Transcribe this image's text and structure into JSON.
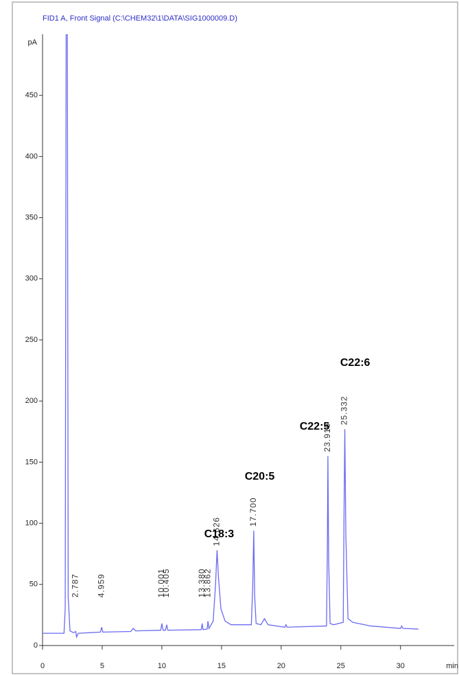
{
  "chart_data": {
    "type": "line",
    "title": "FID1 A, Front Signal (C:\\CHEM32\\1\\DATA\\SIG1000009.D)",
    "xlabel": "min",
    "ylabel": "pA",
    "color": "#6a6af0",
    "x": [
      0,
      1.8,
      1.9,
      1.98,
      2.08,
      2.15,
      2.3,
      2.6,
      2.787,
      2.85,
      3.0,
      4.85,
      4.959,
      5.05,
      7.4,
      7.6,
      7.8,
      9.9,
      10.001,
      10.1,
      10.3,
      10.405,
      10.5,
      13.3,
      13.38,
      13.45,
      13.8,
      13.862,
      13.95,
      14.3,
      14.5,
      14.626,
      14.75,
      14.95,
      15.3,
      15.8,
      17.5,
      17.62,
      17.7,
      17.78,
      17.9,
      18.3,
      18.6,
      18.9,
      20.3,
      20.4,
      20.5,
      23.8,
      23.87,
      23.916,
      23.98,
      24.1,
      24.4,
      25.2,
      25.27,
      25.332,
      25.42,
      25.6,
      26,
      27.5,
      30,
      30.1,
      30.2,
      31.5
    ],
    "values": [
      10,
      10,
      30,
      500,
      500,
      40,
      12,
      10.5,
      11.5,
      7,
      10,
      11,
      15,
      11,
      11.5,
      14,
      12,
      12.5,
      18,
      12.5,
      12.5,
      17,
      12.5,
      13,
      18,
      13,
      13.5,
      20,
      14,
      20,
      50,
      78,
      55,
      30,
      20,
      17,
      17,
      50,
      94,
      40,
      18,
      17,
      22,
      17,
      15,
      17,
      15,
      16,
      80,
      155,
      70,
      18,
      17,
      19,
      110,
      177,
      90,
      22,
      19,
      16,
      14,
      16,
      14,
      13.5
    ],
    "peaks": [
      {
        "value": 2.787,
        "label": "2.787"
      },
      {
        "value": 4.959,
        "label": "4.959"
      },
      {
        "value": 10.001,
        "label": "10.001"
      },
      {
        "value": 10.405,
        "label": "10.405"
      },
      {
        "value": 13.38,
        "label": "13.380"
      },
      {
        "value": 13.862,
        "label": "13.862"
      },
      {
        "value": 14.626,
        "label": "14.626"
      },
      {
        "value": 17.7,
        "label": "17.700"
      },
      {
        "value": 23.916,
        "label": "23.916"
      },
      {
        "value": 25.332,
        "label": "25.332"
      }
    ],
    "annotations": [
      {
        "text": "C18:3",
        "x": 14.8,
        "y": 91
      },
      {
        "text": "C20:5",
        "x": 18.2,
        "y": 138
      },
      {
        "text": "C22:5",
        "x": 22.8,
        "y": 179
      },
      {
        "text": "C22:6",
        "x": 26.2,
        "y": 231
      }
    ],
    "xlim": [
      0,
      34.5
    ],
    "xticks": [
      0,
      5,
      10,
      15,
      20,
      25,
      30
    ],
    "ylim": [
      0,
      500
    ],
    "yticks": [
      0,
      50,
      100,
      150,
      200,
      250,
      300,
      350,
      400,
      450
    ]
  }
}
